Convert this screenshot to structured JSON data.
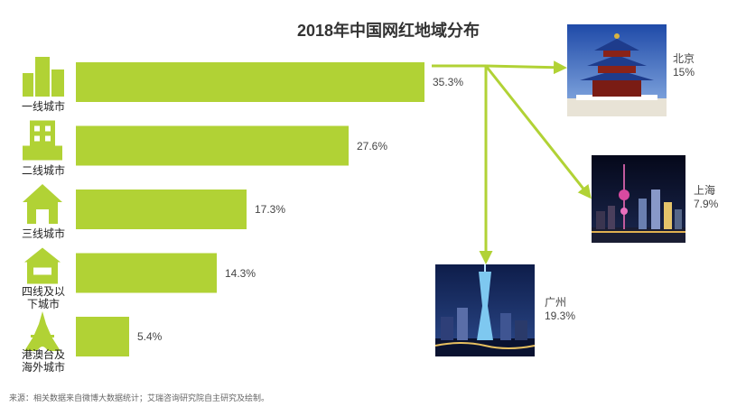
{
  "chart_data": {
    "type": "bar",
    "orientation": "horizontal",
    "title": "2018年中国网红地域分布",
    "categories": [
      "一线城市",
      "二线城市",
      "三线城市",
      "四线及以\n下城市",
      "港澳台及\n海外城市"
    ],
    "values": [
      35.3,
      27.6,
      17.3,
      14.3,
      5.4
    ],
    "value_labels": [
      "35.3%",
      "27.6%",
      "17.3%",
      "14.3%",
      "5.4%"
    ],
    "unit": "%",
    "bar_color": "#b1d235",
    "icon_color": "#b1d235",
    "icons": [
      "office-buildings-icon",
      "building-icon",
      "house-icon",
      "small-house-icon",
      "tower-icon"
    ],
    "grid": false,
    "legend": "none",
    "breakdown_of": "一线城市",
    "breakdown": [
      {
        "city": "北京",
        "value": 15,
        "label": "15%",
        "photo": "temple-of-heaven-photo"
      },
      {
        "city": "上海",
        "value": 7.9,
        "label": "7.9%",
        "photo": "shanghai-skyline-photo"
      },
      {
        "city": "广州",
        "value": 19.3,
        "label": "19.3%",
        "photo": "canton-tower-photo"
      }
    ]
  },
  "source_note": "来源：相关数据来自微博大数据统计；艾瑞咨询研究院自主研究及绘制。"
}
